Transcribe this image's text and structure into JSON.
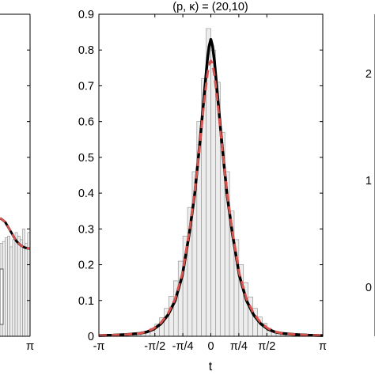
{
  "chart_data": {
    "type": "bar",
    "title": "(p, κ) = (20,10)",
    "xlabel": "t",
    "ylabel": "",
    "xlim": [
      -3.14159,
      3.14159
    ],
    "ylim": [
      0,
      0.9
    ],
    "grid": false,
    "legend": "none",
    "xticks": [
      {
        "value": -3.14159,
        "label": "-π"
      },
      {
        "value": -1.5708,
        "label": "-π/2"
      },
      {
        "value": -0.7854,
        "label": "-π/4"
      },
      {
        "value": 0,
        "label": "0"
      },
      {
        "value": 0.7854,
        "label": "π/4"
      },
      {
        "value": 1.5708,
        "label": "π/2"
      },
      {
        "value": 3.14159,
        "label": "π"
      }
    ],
    "yticks": [
      0,
      0.1,
      0.2,
      0.3,
      0.4,
      0.5,
      0.6,
      0.7,
      0.8,
      0.9
    ],
    "yticklabels": [
      "0",
      "0.1",
      "0.2",
      "0.3",
      "0.4",
      "0.5",
      "0.6",
      "0.7",
      "0.8",
      "0.9"
    ],
    "histogram": {
      "bin_width": 0.1309,
      "centers": [
        -3.0761,
        -2.9452,
        -2.8143,
        -2.6834,
        -2.5525,
        -2.4216,
        -2.2907,
        -2.1598,
        -2.0289,
        -1.898,
        -1.7671,
        -1.6362,
        -1.5053,
        -1.3744,
        -1.2435,
        -1.1126,
        -0.9817,
        -0.8508,
        -0.7199,
        -0.589,
        -0.4581,
        -0.3272,
        -0.1963,
        -0.0654,
        0.0654,
        0.1963,
        0.3272,
        0.4581,
        0.589,
        0.7199,
        0.8508,
        0.9817,
        1.1126,
        1.2435,
        1.3744,
        1.5053,
        1.6362,
        1.7671,
        1.898,
        2.0289,
        2.1598,
        2.2907,
        2.4216,
        2.5525,
        2.6834,
        2.8143,
        2.9452,
        3.0761
      ],
      "values": [
        0.0,
        0.0,
        0.0,
        0.0,
        0.0,
        0.0,
        0.0,
        0.0,
        0.005,
        0.008,
        0.014,
        0.022,
        0.034,
        0.052,
        0.078,
        0.112,
        0.155,
        0.21,
        0.28,
        0.36,
        0.46,
        0.6,
        0.72,
        0.86,
        0.8,
        0.71,
        0.57,
        0.46,
        0.35,
        0.27,
        0.2,
        0.15,
        0.11,
        0.078,
        0.054,
        0.037,
        0.022,
        0.014,
        0.008,
        0.005,
        0.0,
        0.0,
        0.0,
        0.0,
        0.0,
        0.0,
        0.0,
        0.0
      ],
      "fill": "#ededed",
      "edge": "#8a8a8a"
    },
    "series": [
      {
        "style": "solid",
        "color": "#000000",
        "x": [
          -3.1416,
          -2.75,
          -2.36,
          -2.0,
          -1.8,
          -1.6,
          -1.4,
          -1.2,
          -1.0,
          -0.8,
          -0.6,
          -0.45,
          -0.3,
          -0.2,
          -0.1,
          -0.05,
          0,
          0.05,
          0.1,
          0.2,
          0.3,
          0.45,
          0.6,
          0.8,
          1.0,
          1.2,
          1.4,
          1.6,
          1.8,
          2.0,
          2.36,
          2.75,
          3.1416
        ],
        "y": [
          0.002,
          0.003,
          0.005,
          0.008,
          0.012,
          0.02,
          0.035,
          0.06,
          0.1,
          0.17,
          0.29,
          0.4,
          0.55,
          0.66,
          0.77,
          0.81,
          0.83,
          0.81,
          0.77,
          0.66,
          0.55,
          0.4,
          0.29,
          0.17,
          0.1,
          0.06,
          0.035,
          0.02,
          0.012,
          0.008,
          0.005,
          0.003,
          0.002
        ]
      },
      {
        "style": "dashed",
        "color": "#d9534f",
        "x": [
          -3.1416,
          -2.75,
          -2.36,
          -2.0,
          -1.8,
          -1.6,
          -1.4,
          -1.2,
          -1.0,
          -0.8,
          -0.6,
          -0.45,
          -0.3,
          -0.2,
          -0.1,
          -0.05,
          0,
          0.05,
          0.1,
          0.2,
          0.3,
          0.45,
          0.6,
          0.8,
          1.0,
          1.2,
          1.4,
          1.6,
          1.8,
          2.0,
          2.36,
          2.75,
          3.1416
        ],
        "y": [
          0.002,
          0.003,
          0.005,
          0.008,
          0.013,
          0.022,
          0.038,
          0.064,
          0.105,
          0.175,
          0.295,
          0.405,
          0.545,
          0.645,
          0.73,
          0.76,
          0.77,
          0.76,
          0.73,
          0.645,
          0.545,
          0.405,
          0.295,
          0.175,
          0.105,
          0.064,
          0.038,
          0.022,
          0.013,
          0.008,
          0.005,
          0.003,
          0.002
        ]
      }
    ],
    "left_panel": {
      "ylim": [
        0,
        0.9
      ],
      "xtick_label": "π",
      "histogram": {
        "values": [
          0.26,
          0.265,
          0.275,
          0.28,
          0.25,
          0.27,
          0.29,
          0.28,
          0.27,
          0.3,
          0.26,
          0.29
        ],
        "curve": [
          0.33,
          0.325,
          0.318,
          0.305,
          0.292,
          0.278,
          0.266,
          0.258,
          0.252,
          0.248,
          0.246,
          0.245
        ]
      }
    },
    "right_panel": {
      "ytick_labels": [
        "2",
        "1",
        "0"
      ]
    }
  }
}
